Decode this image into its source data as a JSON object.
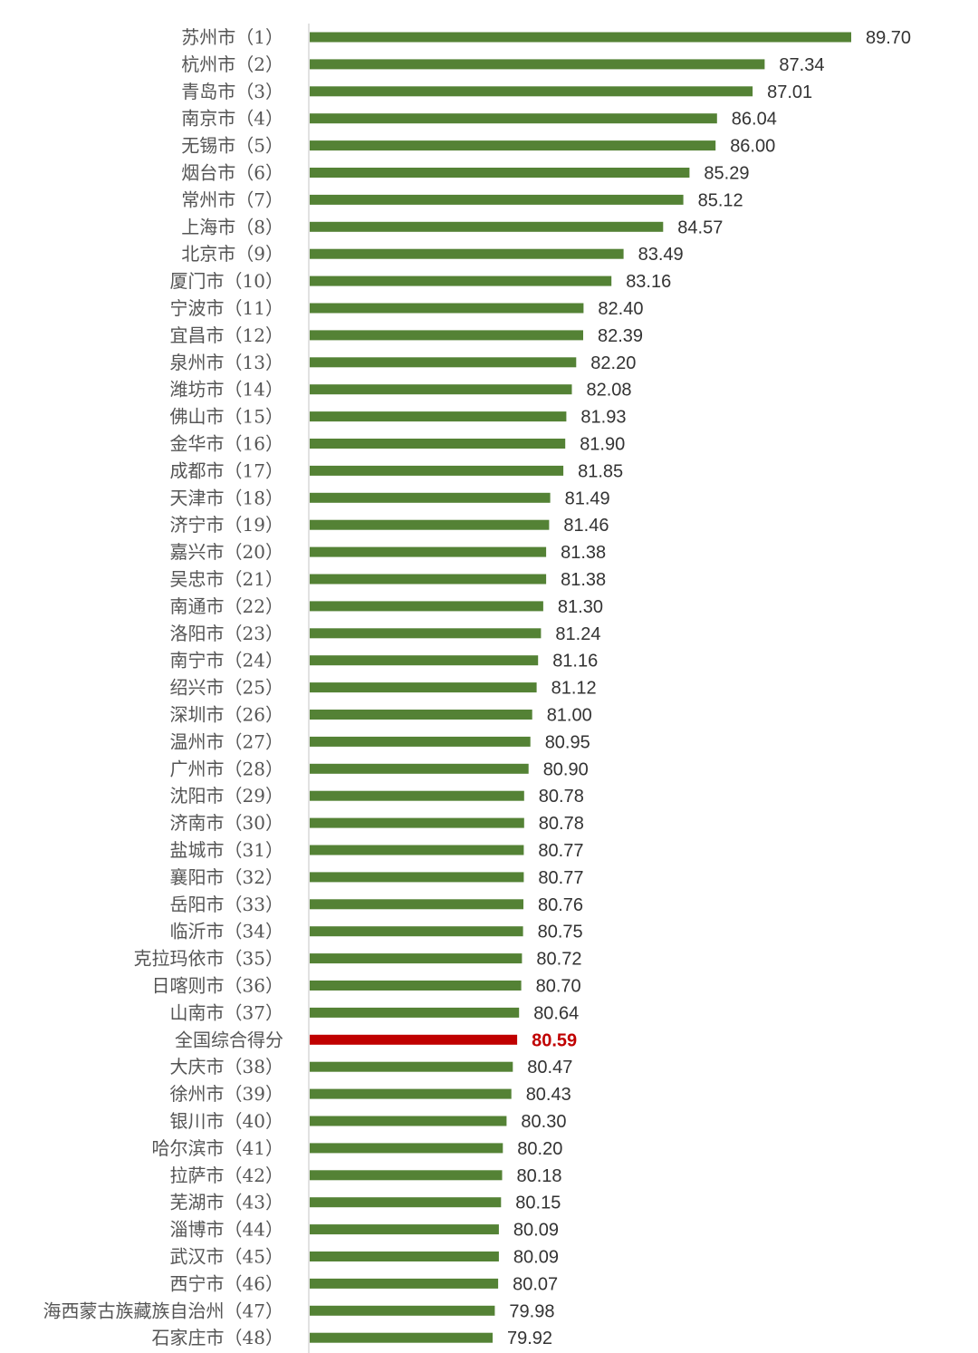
{
  "colors": {
    "bar": "#548235",
    "highlight_bar": "#c00000",
    "highlight_text": "#c00000",
    "axis": "#d9d9d9"
  },
  "chart_data": {
    "type": "bar",
    "orientation": "horizontal",
    "title": "",
    "xlabel": "",
    "ylabel": "",
    "grid": false,
    "legend": "none",
    "highlight_category": "全国综合得分",
    "categories": [
      "苏州市（1）",
      "杭州市（2）",
      "青岛市（3）",
      "南京市（4）",
      "无锡市（5）",
      "烟台市（6）",
      "常州市（7）",
      "上海市（8）",
      "北京市（9）",
      "厦门市（10）",
      "宁波市（11）",
      "宜昌市（12）",
      "泉州市（13）",
      "潍坊市（14）",
      "佛山市（15）",
      "金华市（16）",
      "成都市（17）",
      "天津市（18）",
      "济宁市（19）",
      "嘉兴市（20）",
      "吴忠市（21）",
      "南通市（22）",
      "洛阳市（23）",
      "南宁市（24）",
      "绍兴市（25）",
      "深圳市（26）",
      "温州市（27）",
      "广州市（28）",
      "沈阳市（29）",
      "济南市（30）",
      "盐城市（31）",
      "襄阳市（32）",
      "岳阳市（33）",
      "临沂市（34）",
      "克拉玛依市（35）",
      "日喀则市（36）",
      "山南市（37）",
      "全国综合得分",
      "大庆市（38）",
      "徐州市（39）",
      "银川市（40）",
      "哈尔滨市（41）",
      "拉萨市（42）",
      "芜湖市（43）",
      "淄博市（44）",
      "武汉市（45）",
      "西宁市（46）",
      "海西蒙古族藏族自治州（47）",
      "石家庄市（48）"
    ],
    "values": [
      89.7,
      87.34,
      87.01,
      86.04,
      86.0,
      85.29,
      85.12,
      84.57,
      83.49,
      83.16,
      82.4,
      82.39,
      82.2,
      82.08,
      81.93,
      81.9,
      81.85,
      81.49,
      81.46,
      81.38,
      81.38,
      81.3,
      81.24,
      81.16,
      81.12,
      81.0,
      80.95,
      80.9,
      80.78,
      80.78,
      80.77,
      80.77,
      80.76,
      80.75,
      80.72,
      80.7,
      80.64,
      80.59,
      80.47,
      80.43,
      80.3,
      80.2,
      80.18,
      80.15,
      80.09,
      80.09,
      80.07,
      79.98,
      79.92
    ],
    "value_labels": [
      "89.70",
      "87.34",
      "87.01",
      "86.04",
      "86.00",
      "85.29",
      "85.12",
      "84.57",
      "83.49",
      "83.16",
      "82.40",
      "82.39",
      "82.20",
      "82.08",
      "81.93",
      "81.90",
      "81.85",
      "81.49",
      "81.46",
      "81.38",
      "81.38",
      "81.30",
      "81.24",
      "81.16",
      "81.12",
      "81.00",
      "80.95",
      "80.90",
      "80.78",
      "80.78",
      "80.77",
      "80.77",
      "80.76",
      "80.75",
      "80.72",
      "80.70",
      "80.64",
      "80.59",
      "80.47",
      "80.43",
      "80.30",
      "80.20",
      "80.18",
      "80.15",
      "80.09",
      "80.09",
      "80.07",
      "79.98",
      "79.92"
    ]
  }
}
